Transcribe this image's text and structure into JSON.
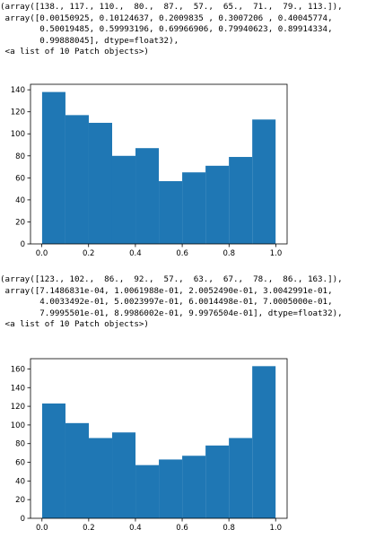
{
  "outputs": [
    {
      "text_lines": [
        "(array([138., 117., 110.,  80.,  87.,  57.,  65.,  71.,  79., 113.]),",
        " array([0.00150925, 0.10124637, 0.2009835 , 0.3007206 , 0.40045774,",
        "        0.50019485, 0.59993196, 0.69966906, 0.79940623, 0.89914334,",
        "        0.99888045], dtype=float32),",
        " <a list of 10 Patch objects>)"
      ]
    },
    {
      "text_lines": [
        "(array([123., 102.,  86.,  92.,  57.,  63.,  67.,  78.,  86., 163.]),",
        " array([7.1486831e-04, 1.0061988e-01, 2.0052490e-01, 3.0042991e-01,",
        "        4.0033492e-01, 5.0023997e-01, 6.0014498e-01, 7.0005000e-01,",
        "        7.9995501e-01, 8.9986002e-01, 9.9976504e-01], dtype=float32),",
        " <a list of 10 Patch objects>)"
      ]
    }
  ],
  "chart_data": [
    {
      "type": "bar",
      "bin_edges": [
        0.00150925,
        0.10124637,
        0.2009835,
        0.3007206,
        0.40045774,
        0.50019485,
        0.59993196,
        0.69966906,
        0.79940623,
        0.89914334,
        0.99888045
      ],
      "values": [
        138,
        117,
        110,
        80,
        87,
        57,
        65,
        71,
        79,
        113
      ],
      "xlim": [
        -0.048,
        1.048
      ],
      "ylim": [
        0,
        145
      ],
      "xticks": [
        0.0,
        0.2,
        0.4,
        0.6,
        0.8,
        1.0
      ],
      "xtick_labels": [
        "0.0",
        "0.2",
        "0.4",
        "0.6",
        "0.8",
        "1.0"
      ],
      "yticks": [
        0,
        20,
        40,
        60,
        80,
        100,
        120,
        140
      ],
      "ytick_labels": [
        "0",
        "20",
        "40",
        "60",
        "80",
        "100",
        "120",
        "140"
      ],
      "bar_color": "#1f77b4",
      "grid": false
    },
    {
      "type": "bar",
      "bin_edges": [
        0.00071486831,
        0.10061988,
        0.2005249,
        0.30042991,
        0.40033492,
        0.50023997,
        0.60014498,
        0.70005,
        0.79995501,
        0.89986002,
        0.99976504
      ],
      "values": [
        123,
        102,
        86,
        92,
        57,
        63,
        67,
        78,
        86,
        163
      ],
      "xlim": [
        -0.049,
        1.049
      ],
      "ylim": [
        0,
        171
      ],
      "xticks": [
        0.0,
        0.2,
        0.4,
        0.6,
        0.8,
        1.0
      ],
      "xtick_labels": [
        "0.0",
        "0.2",
        "0.4",
        "0.6",
        "0.8",
        "1.0"
      ],
      "yticks": [
        0,
        20,
        40,
        60,
        80,
        100,
        120,
        140,
        160
      ],
      "ytick_labels": [
        "0",
        "20",
        "40",
        "60",
        "80",
        "100",
        "120",
        "140",
        "160"
      ],
      "bar_color": "#1f77b4",
      "grid": false
    }
  ]
}
